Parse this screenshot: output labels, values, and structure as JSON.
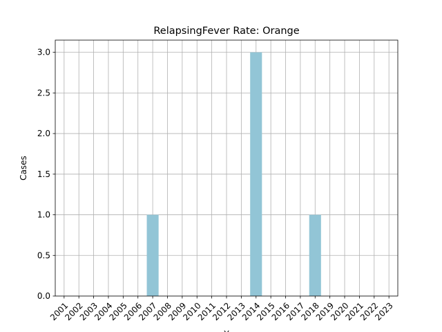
{
  "chart_data": {
    "type": "bar",
    "title": "RelapsingFever Rate: Orange",
    "xlabel": "Y",
    "ylabel": "Cases",
    "categories": [
      "2001",
      "2002",
      "2003",
      "2004",
      "2005",
      "2006",
      "2007",
      "2008",
      "2009",
      "2010",
      "2011",
      "2012",
      "2013",
      "2014",
      "2015",
      "2016",
      "2017",
      "2018",
      "2019",
      "2020",
      "2021",
      "2022",
      "2023"
    ],
    "values": [
      0,
      0,
      0,
      0,
      0,
      0,
      1,
      0,
      0,
      0,
      0,
      0,
      0,
      3,
      0,
      0,
      0,
      1,
      0,
      0,
      0,
      0,
      0
    ],
    "ylim": [
      0,
      3.15
    ],
    "yticks": [
      0.0,
      0.5,
      1.0,
      1.5,
      2.0,
      2.5,
      3.0
    ],
    "ytick_labels": [
      "0.0",
      "0.5",
      "1.0",
      "1.5",
      "2.0",
      "2.5",
      "3.0"
    ],
    "grid": true,
    "bar_color": "#92c5d6",
    "grid_color": "#b0b0b0"
  }
}
